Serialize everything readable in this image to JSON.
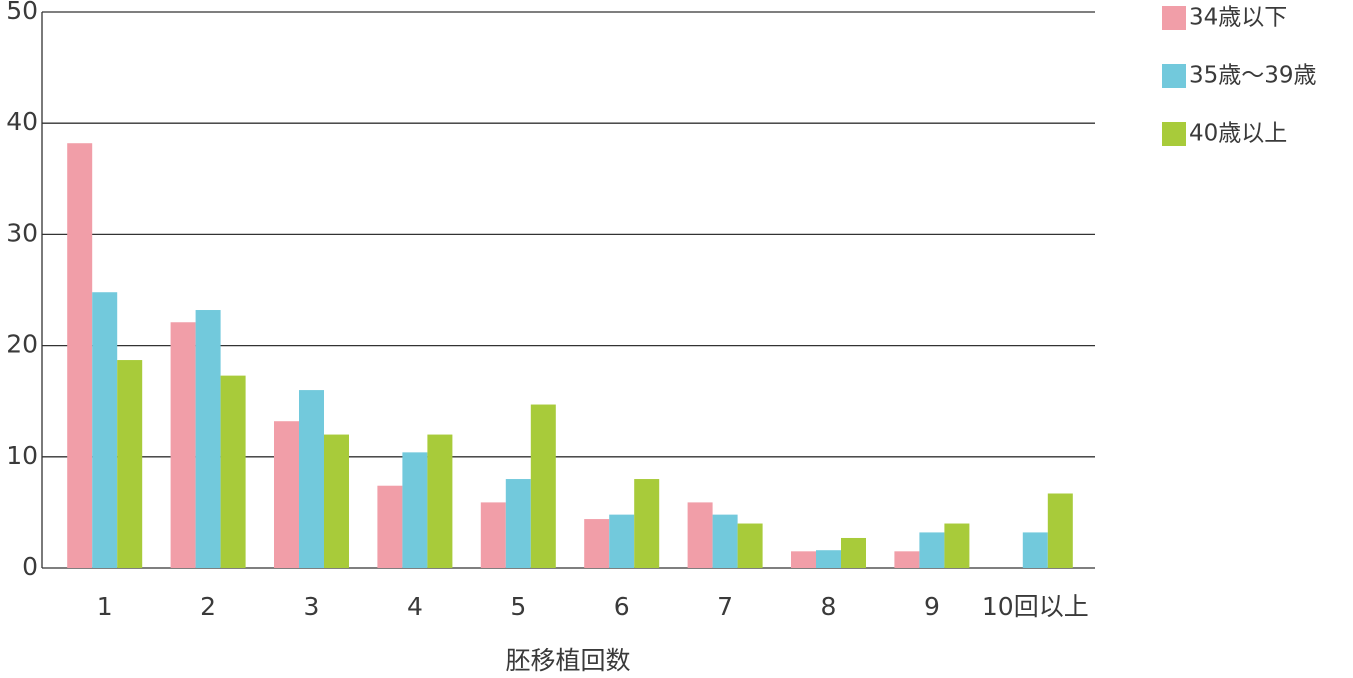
{
  "chart_data": {
    "type": "bar",
    "x_label": "胚移植回数",
    "categories": [
      "1",
      "2",
      "3",
      "4",
      "5",
      "6",
      "7",
      "8",
      "9",
      "10回以上"
    ],
    "series": [
      {
        "name": "34歳以下",
        "color": "#f19ea8",
        "values": [
          38.2,
          22.1,
          13.2,
          7.4,
          5.9,
          4.4,
          5.9,
          1.5,
          1.5,
          null
        ]
      },
      {
        "name": "35歳～39歳",
        "color": "#72c9dc",
        "values": [
          24.8,
          23.2,
          16.0,
          10.4,
          8.0,
          4.8,
          4.8,
          1.6,
          3.2,
          3.2
        ]
      },
      {
        "name": "40歳以上",
        "color": "#a8cb3a",
        "values": [
          18.7,
          17.3,
          12.0,
          12.0,
          14.7,
          8.0,
          4.0,
          2.7,
          4.0,
          6.7
        ]
      }
    ],
    "ylim": [
      0,
      50
    ],
    "yticks": [
      0,
      10,
      20,
      30,
      40,
      50
    ],
    "grid": true,
    "legend": "right"
  }
}
